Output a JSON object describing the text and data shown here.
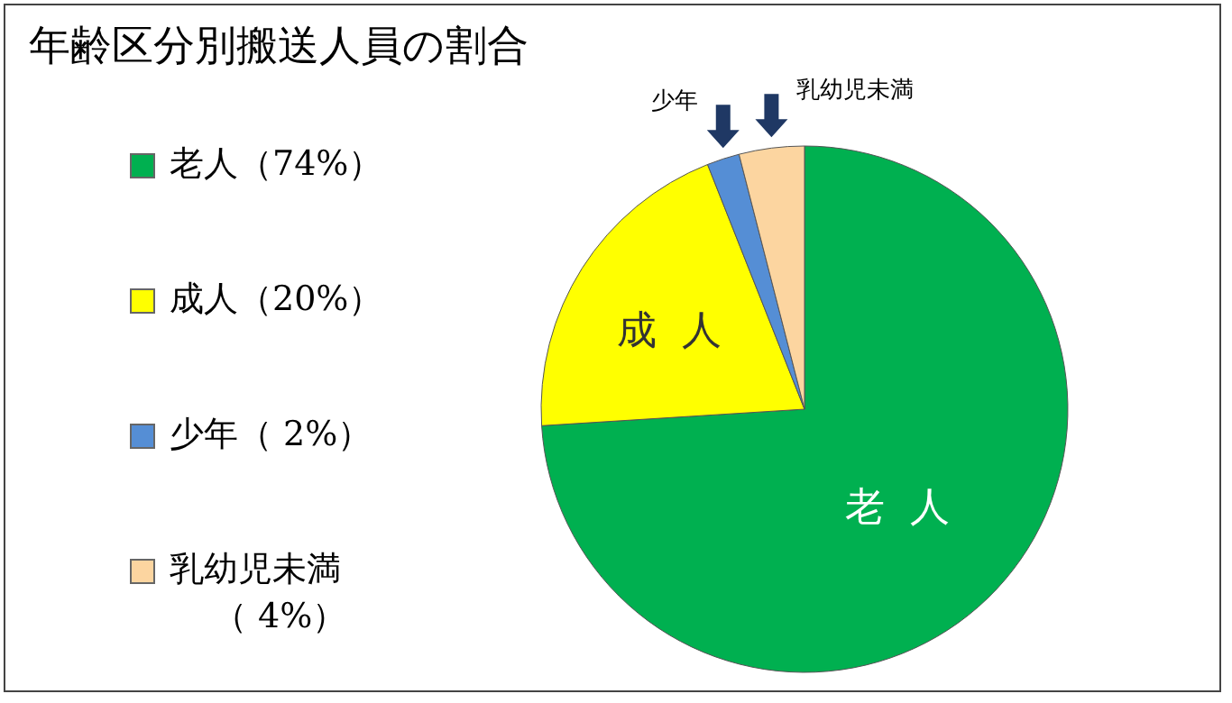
{
  "chart_data": {
    "type": "pie",
    "title": "年齢区分別搬送人員の割合",
    "categories": [
      "老人",
      "成人",
      "少年",
      "乳幼児未満"
    ],
    "values": [
      74,
      20,
      2,
      4
    ],
    "value_labels": [
      "（74%）",
      "（20%）",
      "（ 2%）",
      "（ 4%）"
    ],
    "colors": [
      "#00b050",
      "#ffff00",
      "#558ed5",
      "#fcd5a0"
    ],
    "legend": "left"
  }
}
